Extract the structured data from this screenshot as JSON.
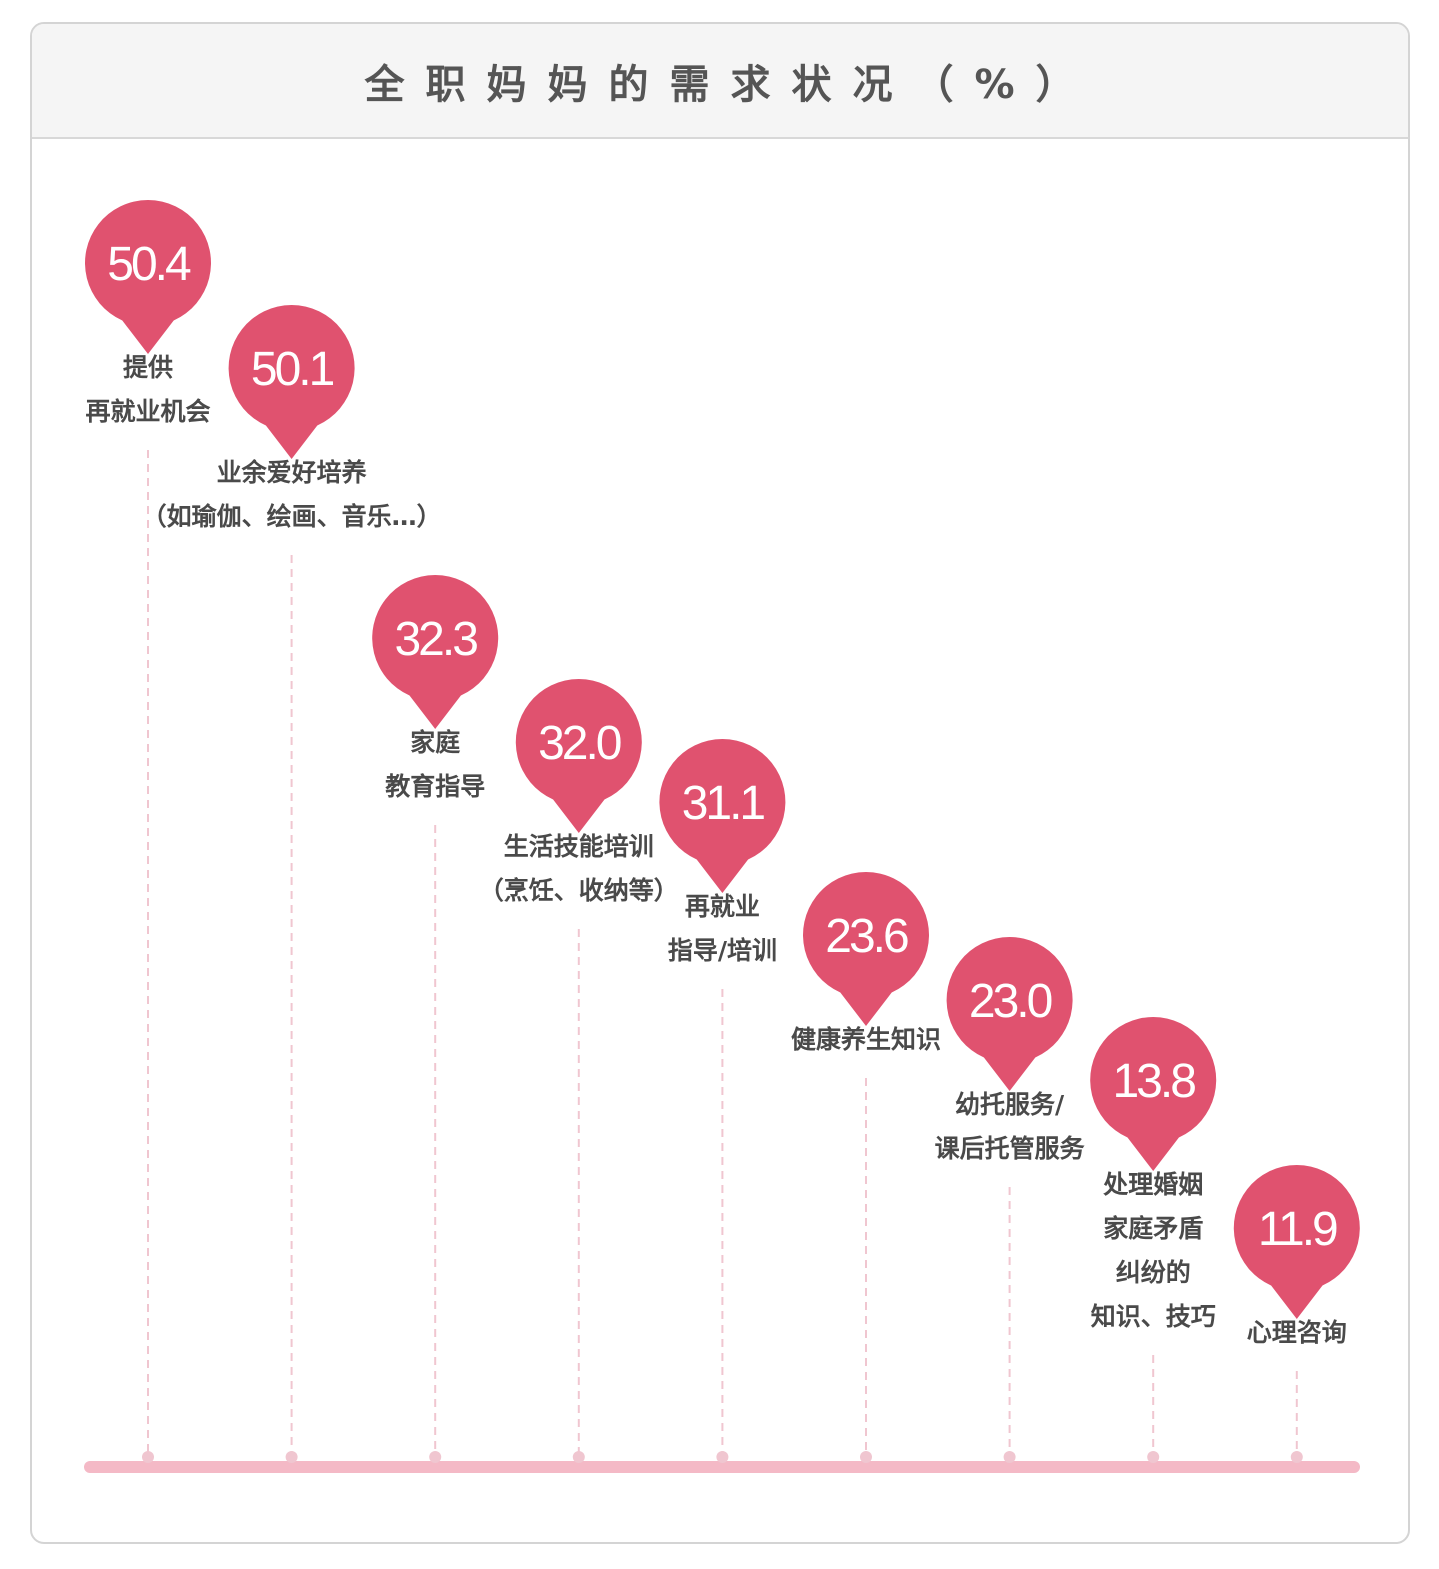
{
  "title": "全职妈妈的需求状况（%）",
  "colors": {
    "pin": "#e0526f",
    "axis": "#f4b9c6",
    "guide": "#f0c6d0",
    "label": "#4a4a4a"
  },
  "chart_data": {
    "type": "bar",
    "title": "全职妈妈的需求状况（%）",
    "unit": "%",
    "categories": [
      [
        "提供",
        "再就业机会"
      ],
      [
        "业余爱好培养",
        "（如瑜伽、绘画、音乐…）"
      ],
      [
        "家庭",
        "教育指导"
      ],
      [
        "生活技能培训",
        "（烹饪、收纳等）"
      ],
      [
        "再就业",
        "指导/培训"
      ],
      [
        "健康养生知识"
      ],
      [
        "幼托服务/",
        "课后托管服务"
      ],
      [
        "处理婚姻",
        "家庭矛盾",
        "纠纷的",
        "知识、技巧"
      ],
      [
        "心理咨询"
      ]
    ],
    "values": [
      50.4,
      50.1,
      32.3,
      32.0,
      31.1,
      23.6,
      23.0,
      13.8,
      11.9
    ],
    "value_labels": [
      "50.4",
      "50.1",
      "32.3",
      "32.0",
      "31.1",
      "23.6",
      "23.0",
      "13.8",
      "11.9"
    ],
    "grid": false,
    "legend": "none"
  }
}
